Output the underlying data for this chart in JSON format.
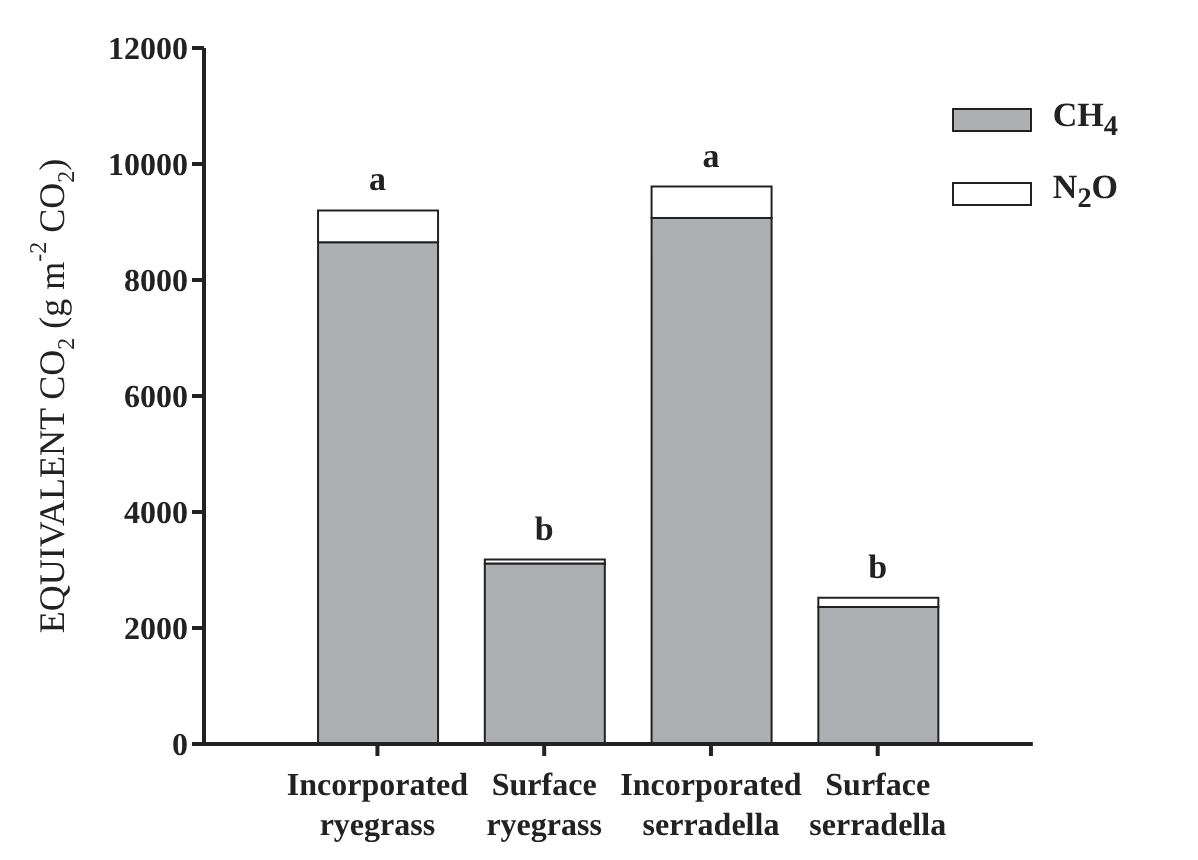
{
  "chart_data": {
    "type": "bar",
    "stacked": true,
    "ylabel": "EQUIVALENT CO$_{2}$ (g m$^{-2}$ CO$_{2}$)",
    "categories": [
      "Incorporated ryegrass",
      "Surface ryegrass",
      "Incorporated serradella",
      "Surface serradella"
    ],
    "series": [
      {
        "name": "CH$_{4}$",
        "color": "#aeafb3",
        "values": [
          8650,
          3110,
          9070,
          2360
        ]
      },
      {
        "name": "N$_{2}$O",
        "color": "#ffffff",
        "values": [
          550,
          70,
          540,
          160
        ]
      }
    ],
    "ylim": [
      0,
      12000
    ],
    "yticks": [
      0,
      2000,
      4000,
      6000,
      8000,
      10000,
      12000
    ],
    "grid": false,
    "legend": "top right",
    "annotations": [
      {
        "text": "a",
        "x": "Incorporated ryegrass",
        "y": 9200
      },
      {
        "text": "b",
        "x": "Surface ryegrass",
        "y": 3180
      },
      {
        "text": "a",
        "x": "Incorporated serradella",
        "y": 9610
      },
      {
        "text": "b",
        "x": "Surface serradella",
        "y": 2520
      }
    ]
  }
}
